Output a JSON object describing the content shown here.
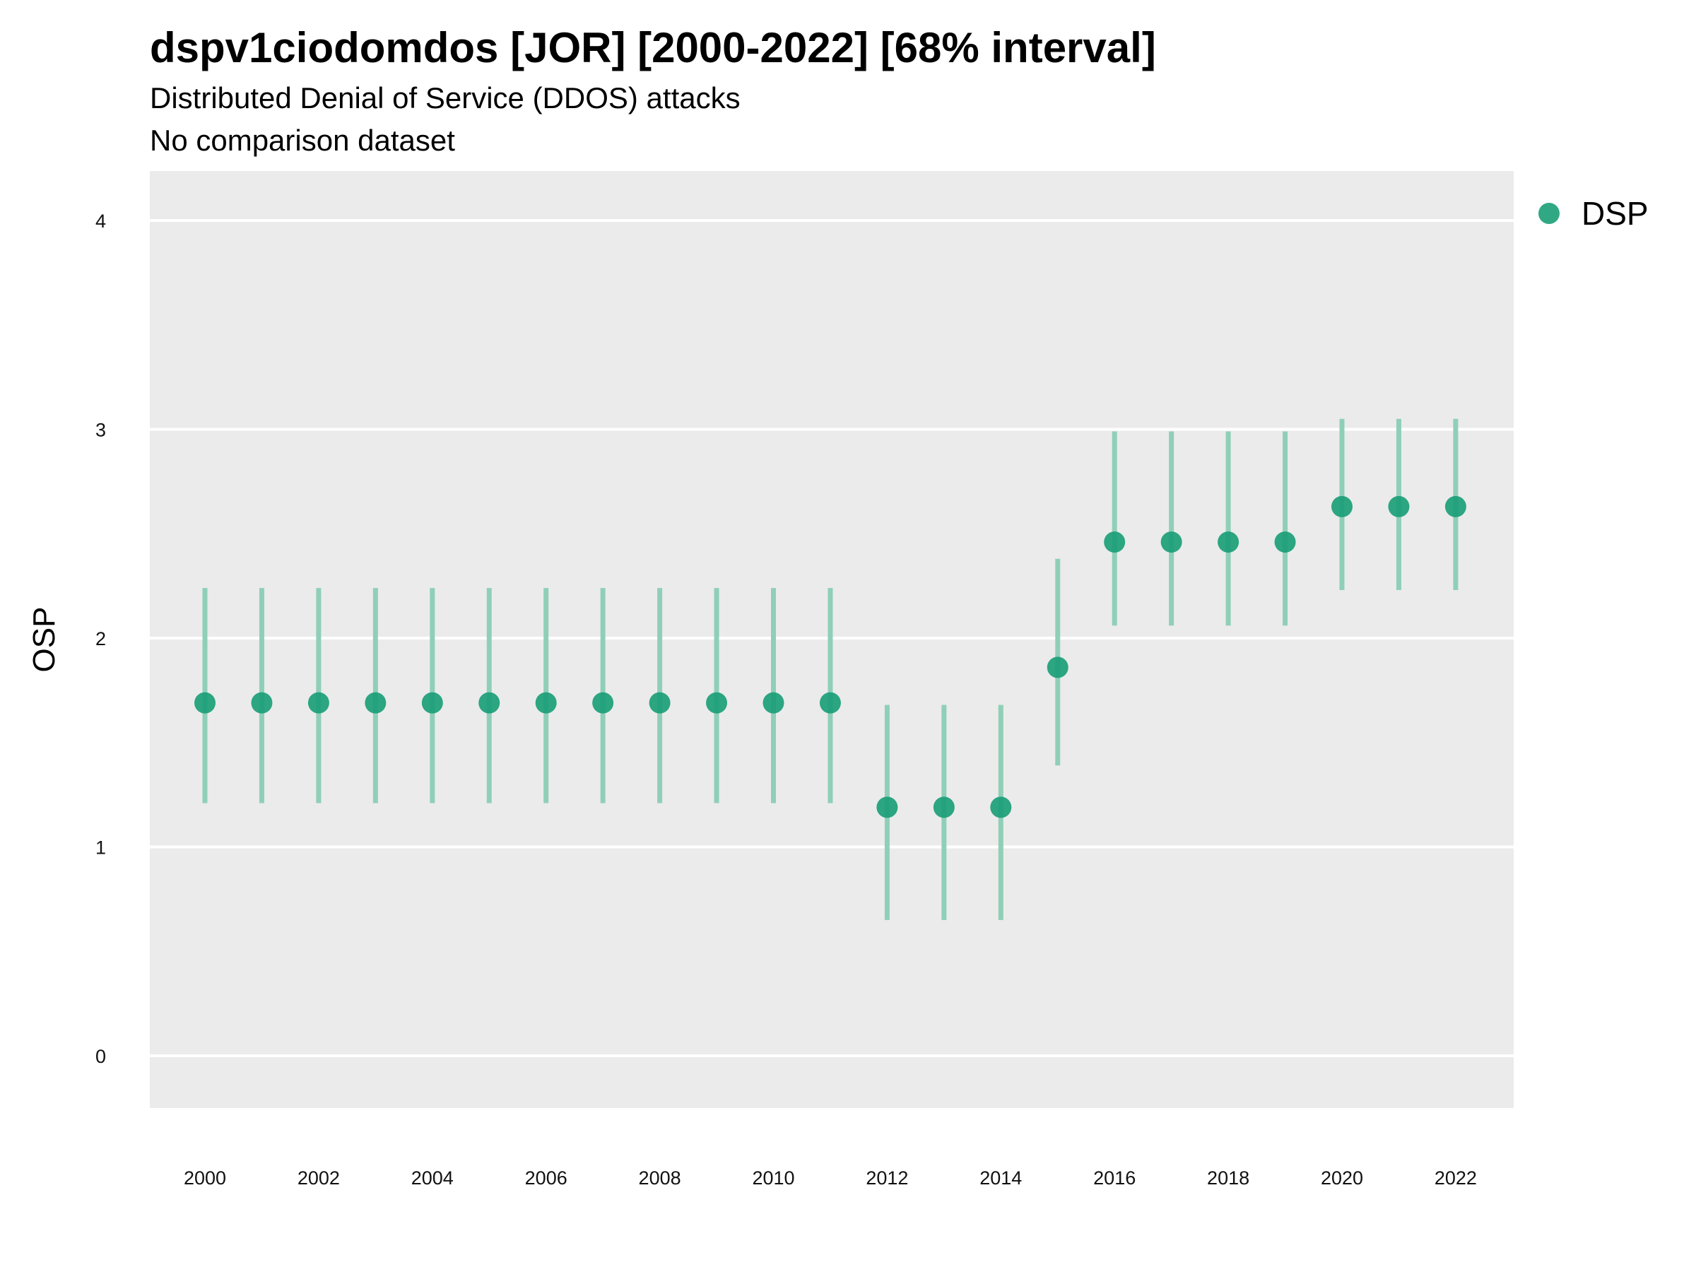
{
  "title": "dspv1ciodomdos [JOR] [2000-2022] [68% interval]",
  "subtitle": "Distributed Denial of Service (DDOS) attacks",
  "caption": "No comparison dataset",
  "chart_data": {
    "type": "scatter",
    "title": "dspv1ciodomdos [JOR] [2000-2022] [68% interval]",
    "subtitle": "Distributed Denial of Service (DDOS) attacks",
    "xlabel": "",
    "ylabel": "OSP",
    "ylim": [
      -0.25,
      4.25
    ],
    "xlim": [
      1999,
      2023
    ],
    "yticks": [
      0,
      1,
      2,
      3,
      4
    ],
    "xticks": [
      2000,
      2002,
      2004,
      2006,
      2008,
      2010,
      2012,
      2014,
      2016,
      2018,
      2020,
      2022
    ],
    "grid": "horizontal",
    "legend_position": "right",
    "colors": {
      "panel": "#ebebeb",
      "point": "#1b9e77",
      "interval": "#8fcfb8",
      "grid": "#ffffff"
    },
    "series": [
      {
        "name": "DSP",
        "x": [
          2000,
          2001,
          2002,
          2003,
          2004,
          2005,
          2006,
          2007,
          2008,
          2009,
          2010,
          2011,
          2012,
          2013,
          2014,
          2015,
          2016,
          2017,
          2018,
          2019,
          2020,
          2021,
          2022
        ],
        "y": [
          1.69,
          1.69,
          1.69,
          1.69,
          1.69,
          1.69,
          1.69,
          1.69,
          1.69,
          1.69,
          1.69,
          1.69,
          1.19,
          1.19,
          1.19,
          1.86,
          2.46,
          2.46,
          2.46,
          2.46,
          2.63,
          2.63,
          2.63
        ],
        "lower": [
          1.21,
          1.21,
          1.21,
          1.21,
          1.21,
          1.21,
          1.21,
          1.21,
          1.21,
          1.21,
          1.21,
          1.21,
          0.65,
          0.65,
          0.65,
          1.39,
          2.06,
          2.06,
          2.06,
          2.06,
          2.23,
          2.23,
          2.23
        ],
        "upper": [
          2.24,
          2.24,
          2.24,
          2.24,
          2.24,
          2.24,
          2.24,
          2.24,
          2.24,
          2.24,
          2.24,
          2.24,
          1.68,
          1.68,
          1.68,
          2.38,
          2.99,
          2.99,
          2.99,
          2.99,
          3.05,
          3.05,
          3.05
        ]
      }
    ]
  }
}
